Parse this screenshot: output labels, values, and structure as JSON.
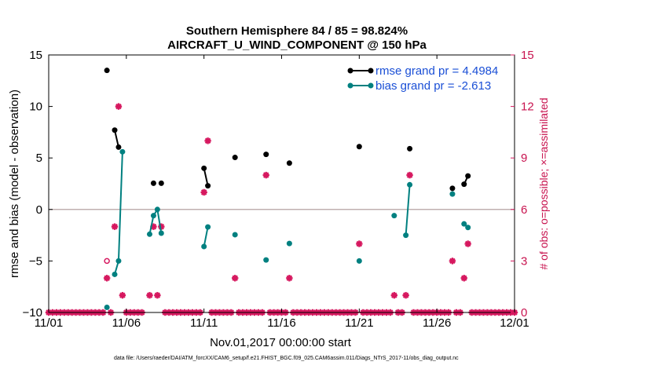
{
  "chart_data": {
    "type": "scatter",
    "title_line1": "Southern Hemisphere 84 / 85 = 98.824%",
    "title_line2": "AIRCRAFT_U_WIND_COMPONENT @ 150 hPa",
    "xlabel": "Nov.01,2017 00:00:00 start",
    "ylabel": "rmse and bias (model - observation)",
    "y2label": "# of obs: o=possible; ×=assimilated",
    "xlim": [
      0,
      30
    ],
    "ylim": [
      -10,
      15
    ],
    "y2lim": [
      0,
      15
    ],
    "x_ticks": [
      0,
      5,
      10,
      15,
      20,
      25,
      30
    ],
    "x_tick_labels": [
      "11/01",
      "11/06",
      "11/11",
      "11/16",
      "11/21",
      "11/26",
      "12/01"
    ],
    "y_ticks": [
      -10,
      -5,
      0,
      5,
      10,
      15
    ],
    "y_tick_labels": [
      "−10",
      "−5",
      "0",
      "5",
      "10",
      "15"
    ],
    "y2_ticks": [
      0,
      3,
      6,
      9,
      12,
      15
    ],
    "y2_tick_labels": [
      "0",
      "3",
      "6",
      "9",
      "12",
      "15"
    ],
    "footer": "data file: /Users/raeder/DAI/ATM_forcXX/CAM6_setup/f.e21.FHIST_BGC.f09_025.CAM6assim.011/Diags_NTrS_2017-11/obs_diag_output.nc",
    "colors": {
      "rmse": "#000000",
      "bias": "#008080",
      "obs": "#d6185f",
      "zero_line": "#c0b0b0"
    },
    "series": [
      {
        "name": "rmse grand pr = 4.4984",
        "segments": [
          [
            [
              3.75,
              13.5
            ]
          ],
          [
            [
              4.25,
              7.7
            ],
            [
              4.5,
              6.05
            ]
          ],
          [
            [
              6.75,
              2.55
            ]
          ],
          [
            [
              7.25,
              2.55
            ]
          ],
          [
            [
              10.0,
              4.0
            ],
            [
              10.25,
              2.3
            ]
          ],
          [
            [
              12.0,
              5.05
            ]
          ],
          [
            [
              14.0,
              5.35
            ]
          ],
          [
            [
              15.5,
              4.5
            ]
          ],
          [
            [
              20.0,
              6.1
            ]
          ],
          [
            [
              23.25,
              5.9
            ]
          ],
          [
            [
              26.0,
              2.05
            ]
          ],
          [
            [
              26.75,
              2.45
            ],
            [
              27.0,
              3.25
            ]
          ]
        ]
      },
      {
        "name": "bias grand pr = -2.613",
        "segments": [
          [
            [
              3.75,
              -9.5
            ]
          ],
          [
            [
              4.25,
              -6.3
            ],
            [
              4.5,
              -5.0
            ],
            [
              4.75,
              5.6
            ]
          ],
          [
            [
              6.5,
              -2.4
            ],
            [
              6.75,
              -0.6
            ],
            [
              7.0,
              0.0
            ],
            [
              7.25,
              -2.3
            ]
          ],
          [
            [
              10.0,
              -3.6
            ],
            [
              10.25,
              -1.7
            ]
          ],
          [
            [
              12.0,
              -2.45
            ]
          ],
          [
            [
              14.0,
              -4.9
            ]
          ],
          [
            [
              15.5,
              -3.3
            ]
          ],
          [
            [
              20.0,
              -5.0
            ]
          ],
          [
            [
              22.25,
              -0.6
            ]
          ],
          [
            [
              23.0,
              -2.5
            ],
            [
              23.25,
              2.4
            ]
          ],
          [
            [
              26.0,
              1.5
            ]
          ],
          [
            [
              26.75,
              -1.4
            ],
            [
              27.0,
              -1.75
            ]
          ]
        ]
      }
    ],
    "obs_assimilated": [
      [
        0,
        0
      ],
      [
        0.25,
        0
      ],
      [
        0.5,
        0
      ],
      [
        0.75,
        0
      ],
      [
        1,
        0
      ],
      [
        1.25,
        0
      ],
      [
        1.5,
        0
      ],
      [
        1.75,
        0
      ],
      [
        2,
        0
      ],
      [
        2.25,
        0
      ],
      [
        2.5,
        0
      ],
      [
        2.75,
        0
      ],
      [
        3,
        0
      ],
      [
        3.25,
        0
      ],
      [
        3.5,
        0
      ],
      [
        3.75,
        2
      ],
      [
        4.0,
        0
      ],
      [
        4.25,
        5
      ],
      [
        4.5,
        12
      ],
      [
        4.75,
        1
      ],
      [
        5,
        0
      ],
      [
        5.25,
        0
      ],
      [
        5.5,
        0
      ],
      [
        5.75,
        0
      ],
      [
        6.0,
        0
      ],
      [
        6.5,
        1
      ],
      [
        6.75,
        5
      ],
      [
        7.0,
        1
      ],
      [
        7.25,
        5
      ],
      [
        7.5,
        0
      ],
      [
        7.75,
        0
      ],
      [
        8,
        0
      ],
      [
        8.25,
        0
      ],
      [
        8.5,
        0
      ],
      [
        8.75,
        0
      ],
      [
        9,
        0
      ],
      [
        9.25,
        0
      ],
      [
        9.5,
        0
      ],
      [
        9.75,
        0
      ],
      [
        10.0,
        7
      ],
      [
        10.25,
        10
      ],
      [
        10.5,
        0
      ],
      [
        10.75,
        0
      ],
      [
        11,
        0
      ],
      [
        11.25,
        0
      ],
      [
        11.5,
        0
      ],
      [
        11.75,
        0
      ],
      [
        12.0,
        2
      ],
      [
        12.25,
        0
      ],
      [
        12.5,
        0
      ],
      [
        12.75,
        0
      ],
      [
        13,
        0
      ],
      [
        13.25,
        0
      ],
      [
        13.5,
        0
      ],
      [
        13.75,
        0
      ],
      [
        14.0,
        8
      ],
      [
        14.25,
        0
      ],
      [
        14.5,
        0
      ],
      [
        14.75,
        0
      ],
      [
        15,
        0
      ],
      [
        15.25,
        0
      ],
      [
        15.5,
        2
      ],
      [
        15.75,
        0
      ],
      [
        16,
        0
      ],
      [
        16.25,
        0
      ],
      [
        16.5,
        0
      ],
      [
        16.75,
        0
      ],
      [
        17,
        0
      ],
      [
        17.25,
        0
      ],
      [
        17.5,
        0
      ],
      [
        17.75,
        0
      ],
      [
        18,
        0
      ],
      [
        18.25,
        0
      ],
      [
        18.5,
        0
      ],
      [
        18.75,
        0
      ],
      [
        19,
        0
      ],
      [
        19.25,
        0
      ],
      [
        19.5,
        0
      ],
      [
        19.75,
        0
      ],
      [
        20.0,
        4
      ],
      [
        20.25,
        0
      ],
      [
        20.5,
        0
      ],
      [
        20.75,
        0
      ],
      [
        21,
        0
      ],
      [
        21.25,
        0
      ],
      [
        21.5,
        0
      ],
      [
        21.75,
        0
      ],
      [
        22.0,
        0
      ],
      [
        22.25,
        1
      ],
      [
        22.5,
        0
      ],
      [
        22.75,
        0
      ],
      [
        23.0,
        1
      ],
      [
        23.25,
        8
      ],
      [
        23.5,
        0
      ],
      [
        23.75,
        0
      ],
      [
        24,
        0
      ],
      [
        24.25,
        0
      ],
      [
        24.5,
        0
      ],
      [
        24.75,
        0
      ],
      [
        25,
        0
      ],
      [
        25.25,
        0
      ],
      [
        25.5,
        0
      ],
      [
        25.75,
        0
      ],
      [
        26.0,
        3
      ],
      [
        26.25,
        0
      ],
      [
        26.5,
        0
      ],
      [
        26.75,
        2
      ],
      [
        27.0,
        4
      ],
      [
        27.25,
        0
      ],
      [
        27.5,
        0
      ],
      [
        27.75,
        0
      ],
      [
        28,
        0
      ],
      [
        28.25,
        0
      ],
      [
        28.5,
        0
      ],
      [
        28.75,
        0
      ],
      [
        29,
        0
      ],
      [
        29.25,
        0
      ],
      [
        29.5,
        0
      ],
      [
        29.75,
        0
      ],
      [
        30,
        0
      ]
    ],
    "obs_possible": [
      [
        3.75,
        3
      ]
    ]
  }
}
